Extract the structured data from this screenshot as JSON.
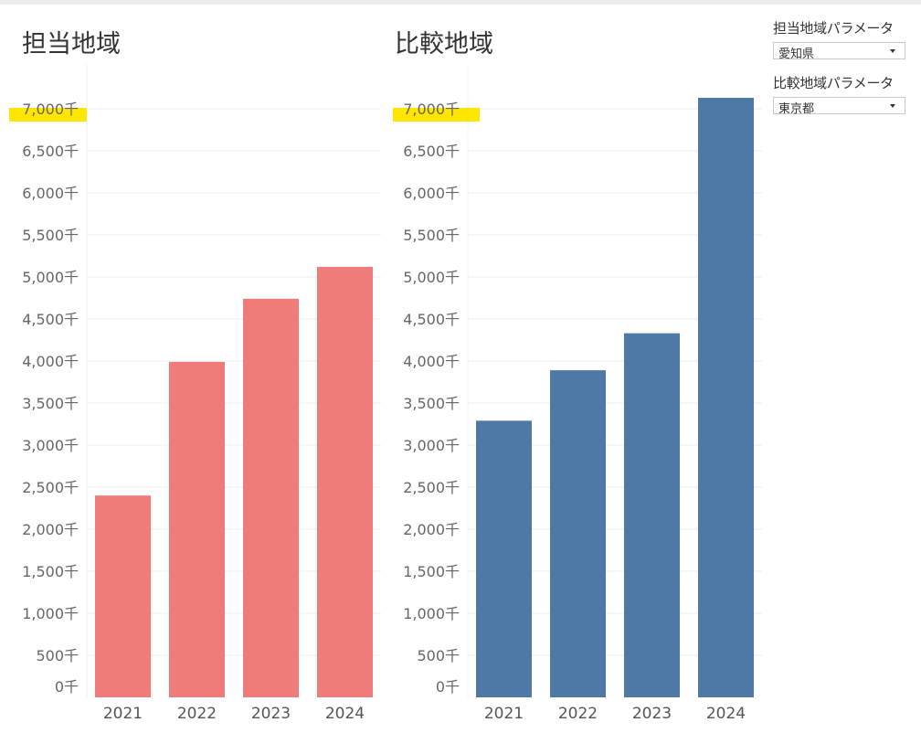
{
  "titles": {
    "left": "担当地域",
    "right": "比較地域"
  },
  "parameters": [
    {
      "label": "担当地域パラメータ",
      "value": "愛知県"
    },
    {
      "label": "比較地域パラメータ",
      "value": "東京都"
    }
  ],
  "colors": {
    "left_bars": "#f07b7b",
    "right_bars": "#4e79a7",
    "highlight": "#ffe600",
    "grid": "#eeeeee"
  },
  "chart_data": [
    {
      "type": "bar",
      "title": "担当地域",
      "categories": [
        "2021",
        "2022",
        "2023",
        "2024"
      ],
      "values": [
        2400,
        3990,
        4740,
        5120
      ],
      "ylim": [
        0,
        7500
      ],
      "y_ticks": [
        0,
        500,
        1000,
        1500,
        2000,
        2500,
        3000,
        3500,
        4000,
        4500,
        5000,
        5500,
        6000,
        6500,
        7000
      ],
      "y_tick_labels": [
        "0千",
        "500千",
        "1,000千",
        "1,500千",
        "2,000千",
        "2,500千",
        "3,000千",
        "3,500千",
        "4,000千",
        "4,500千",
        "5,000千",
        "5,500千",
        "6,000千",
        "6,500千",
        "7,000千"
      ],
      "highlighted_tick": "7,000千",
      "grid": true,
      "color": "#f07b7b"
    },
    {
      "type": "bar",
      "title": "比較地域",
      "categories": [
        "2021",
        "2022",
        "2023",
        "2024"
      ],
      "values": [
        3290,
        3890,
        4330,
        7130
      ],
      "ylim": [
        0,
        7500
      ],
      "y_ticks": [
        0,
        500,
        1000,
        1500,
        2000,
        2500,
        3000,
        3500,
        4000,
        4500,
        5000,
        5500,
        6000,
        6500,
        7000
      ],
      "y_tick_labels": [
        "0千",
        "500千",
        "1,000千",
        "1,500千",
        "2,000千",
        "2,500千",
        "3,000千",
        "3,500千",
        "4,000千",
        "4,500千",
        "5,000千",
        "5,500千",
        "6,000千",
        "6,500千",
        "7,000千"
      ],
      "highlighted_tick": "7,000千",
      "grid": true,
      "color": "#4e79a7"
    }
  ]
}
